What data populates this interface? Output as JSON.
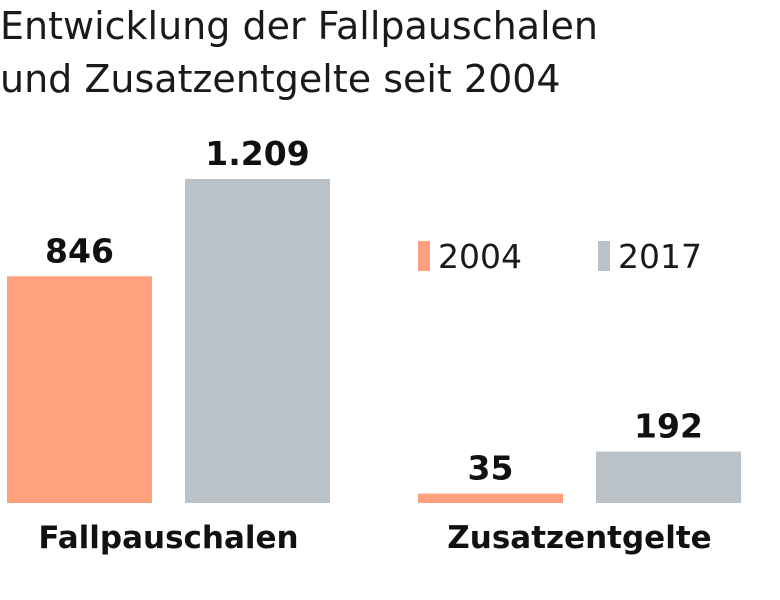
{
  "chart_data": {
    "type": "bar",
    "title": [
      "Entwicklung der Fallpauschalen",
      "und Zusatzentgelte seit 2004"
    ],
    "categories": [
      "Fallpauschalen",
      "Zusatzentgelte"
    ],
    "series": [
      {
        "name": "2004",
        "color": "#ffa07f",
        "values": [
          846,
          35
        ],
        "labels": [
          "846",
          "35"
        ]
      },
      {
        "name": "2017",
        "color": "#bac1c7",
        "values": [
          1209,
          192
        ],
        "labels": [
          "1.209",
          "192"
        ]
      }
    ],
    "legend_position": "right",
    "grid": false,
    "ylim": [
      0,
      1209
    ]
  }
}
